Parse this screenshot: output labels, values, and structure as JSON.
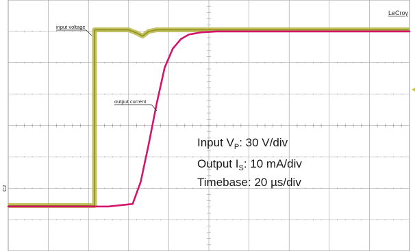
{
  "brand": "LeCroy",
  "channel_marker": "C2",
  "annotations": {
    "input_label": "input voltage",
    "output_label": "output current"
  },
  "legend": {
    "line1_prefix": "Input V",
    "line1_sub": "P",
    "line1_suffix": ": 30 V/div",
    "line2_prefix": "Output I",
    "line2_sub": "S",
    "line2_suffix": ": 10 mA/div",
    "line3": "Timebase: 20 µs/div"
  },
  "colors": {
    "input": "#8f8f1c",
    "input_band": "#b8b84a",
    "output": "#d4146b",
    "grid": "#9a9a9a"
  },
  "chart_data": {
    "type": "line",
    "grid": true,
    "divisions": {
      "x": 10,
      "y": 8
    },
    "xlim": [
      0,
      10
    ],
    "ylim": [
      0,
      8
    ],
    "series": [
      {
        "key": "input",
        "x": [
          0,
          2.15,
          2.15,
          3.0,
          3.2,
          3.35,
          3.5,
          3.7,
          10
        ],
        "y": [
          1.45,
          1.45,
          7.05,
          7.05,
          6.95,
          6.85,
          7.0,
          7.05,
          7.05
        ]
      },
      {
        "key": "output",
        "x": [
          0,
          2.5,
          3.1,
          3.3,
          3.5,
          3.7,
          3.9,
          4.1,
          4.3,
          4.5,
          4.8,
          5.2,
          10
        ],
        "y": [
          1.42,
          1.42,
          1.5,
          2.2,
          3.4,
          4.7,
          5.85,
          6.45,
          6.75,
          6.9,
          6.97,
          7.0,
          7.0
        ]
      }
    ]
  }
}
